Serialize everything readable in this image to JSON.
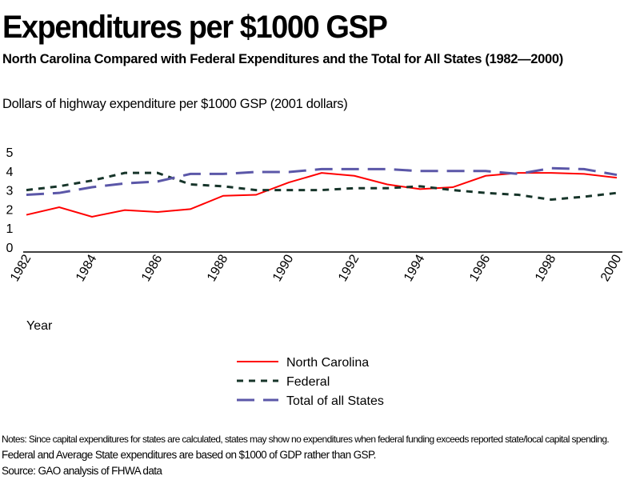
{
  "title": "Expenditures per $1000 GSP",
  "subtitle": "North Carolina Compared with Federal Expenditures and the Total for All States (1982—2000)",
  "notes": [
    "Notes: Since capital expenditures for states are calculated, states may show no expenditures when federal funding exceeds reported state/local capital spending.",
    "Federal and Average State expenditures are based on $1000 of GDP rather than GSP.",
    "Source: GAO analysis of FHWA data"
  ],
  "chart_data": {
    "type": "line",
    "ylabel": "Dollars of highway expenditure per $1000 GSP (2001 dollars)",
    "xlabel": "Year",
    "x": [
      1982,
      1983,
      1984,
      1985,
      1986,
      1987,
      1988,
      1989,
      1990,
      1991,
      1992,
      1993,
      1994,
      1995,
      1996,
      1997,
      1998,
      1999,
      2000
    ],
    "x_tick_labels": [
      "1982",
      "1984",
      "1986",
      "1988",
      "1990",
      "1992",
      "1994",
      "1996",
      "1998",
      "2000"
    ],
    "y_tick_labels": [
      "0",
      "1",
      "2",
      "3",
      "4",
      "5"
    ],
    "ylim": [
      0,
      5
    ],
    "grid": false,
    "legend_position": "bottom",
    "series": [
      {
        "name": "North Carolina",
        "color": "#ff0000",
        "dash": "solid",
        "values": [
          1.7,
          2.1,
          1.6,
          1.95,
          1.85,
          2.0,
          2.7,
          2.75,
          3.4,
          3.9,
          3.75,
          3.3,
          3.05,
          3.15,
          3.75,
          3.9,
          3.9,
          3.85,
          3.65
        ]
      },
      {
        "name": "Federal",
        "color": "#17352a",
        "dash": "short-dash",
        "values": [
          3.0,
          3.2,
          3.5,
          3.9,
          3.9,
          3.3,
          3.2,
          3.0,
          3.0,
          3.0,
          3.1,
          3.1,
          3.2,
          3.0,
          2.85,
          2.75,
          2.5,
          2.65,
          2.85
        ]
      },
      {
        "name": "Total of all States",
        "color": "#5b57a8",
        "dash": "long-dash",
        "values": [
          2.75,
          2.85,
          3.15,
          3.35,
          3.45,
          3.85,
          3.85,
          3.95,
          3.95,
          4.1,
          4.1,
          4.1,
          4.0,
          4.0,
          4.0,
          3.85,
          4.15,
          4.1,
          3.8
        ]
      }
    ]
  }
}
